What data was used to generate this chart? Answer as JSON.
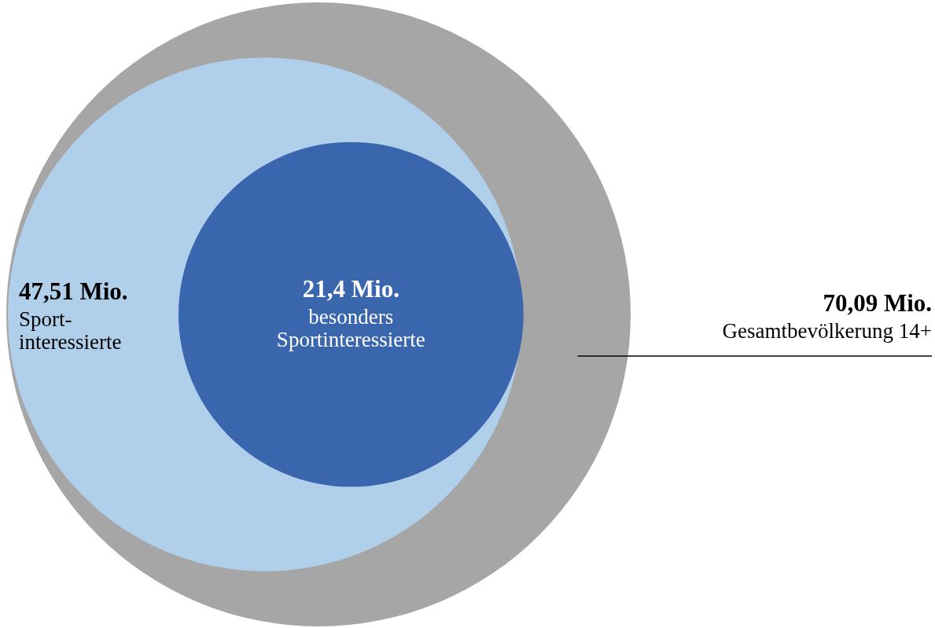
{
  "chart_data": {
    "type": "other",
    "categories": [
      "Gesamtbevölkerung 14+",
      "Sport-interessierte",
      "besonders Sportinteressierte"
    ],
    "values": [
      70.09,
      47.51,
      21.4
    ],
    "value_labels": [
      "70,09 Mio.",
      "47,51 Mio.",
      "21,4 Mio."
    ],
    "colors": [
      "#a6a6a6",
      "#afcfeb",
      "#3a66ae"
    ]
  }
}
